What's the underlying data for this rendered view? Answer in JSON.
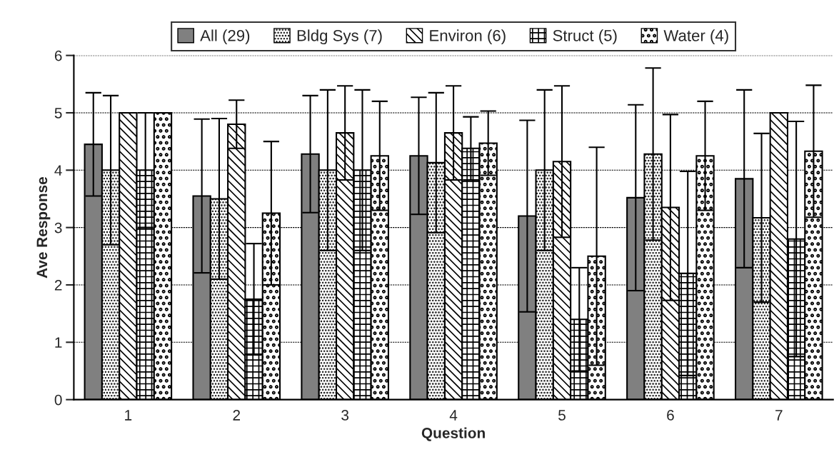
{
  "chart_data": {
    "type": "bar",
    "xlabel": "Question",
    "ylabel": "Ave Response",
    "categories": [
      "1",
      "2",
      "3",
      "4",
      "5",
      "6",
      "7"
    ],
    "series": [
      {
        "name": "All (29)",
        "color": "#808080",
        "values": [
          4.45,
          3.55,
          4.28,
          4.25,
          3.2,
          3.52,
          3.85
        ],
        "errors": [
          0.9,
          1.34,
          1.02,
          1.02,
          1.67,
          1.62,
          1.55
        ]
      },
      {
        "name": "Bldg Sys (7)",
        "color": "#000000",
        "values": [
          4.0,
          3.5,
          4.0,
          4.13,
          4.0,
          4.28,
          3.17
        ],
        "errors": [
          1.3,
          1.4,
          1.4,
          1.22,
          1.4,
          1.5,
          1.47
        ]
      },
      {
        "name": "Environ (6)",
        "color": "#000000",
        "values": [
          5.0,
          4.8,
          4.65,
          4.65,
          4.15,
          3.35,
          5.0
        ],
        "errors": [
          null,
          0.42,
          0.82,
          0.82,
          1.32,
          1.62,
          null
        ]
      },
      {
        "name": "Struct (5)",
        "color": "#000000",
        "values": [
          4.0,
          1.75,
          4.0,
          4.38,
          1.4,
          2.2,
          2.8
        ],
        "errors": [
          1.0,
          0.97,
          1.4,
          0.55,
          0.9,
          1.78,
          2.05
        ]
      },
      {
        "name": "Water (4)",
        "color": "#000000",
        "values": [
          5.0,
          3.25,
          4.25,
          4.47,
          2.5,
          4.25,
          4.33
        ],
        "errors": [
          null,
          1.25,
          0.95,
          0.56,
          1.9,
          0.95,
          1.15
        ]
      }
    ],
    "ylim": [
      0,
      6
    ],
    "yticks": [
      0,
      1,
      2,
      3,
      4,
      5,
      6
    ],
    "grid": "y",
    "legend": "top"
  }
}
